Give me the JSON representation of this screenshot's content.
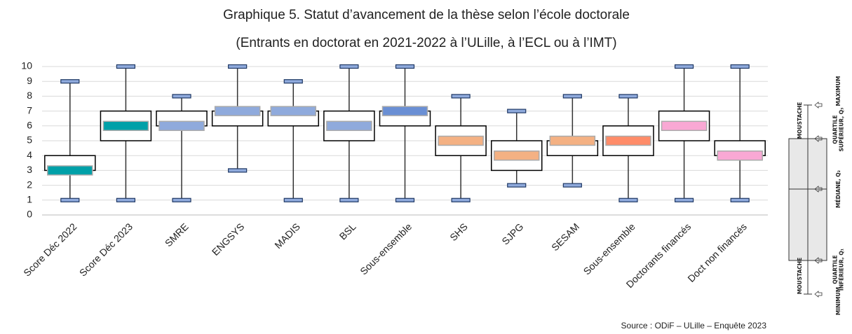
{
  "chart_data": {
    "type": "box",
    "title": "Graphique 5. Statut d’avancement de la thèse selon l’école doctorale",
    "subtitle": "(Entrants en doctorat en 2021-2022 à l’ULille, à l’ECL ou à l’IMT)",
    "categories": [
      "Score Déc 2022",
      "Score Déc 2023",
      "SMRE",
      "ENGSYS",
      "MADIS",
      "BSL",
      "Sous-ensemble",
      "SHS",
      "SJPG",
      "SESAM",
      "Sous-ensemble",
      "Doctorants financés",
      "Doct non financés"
    ],
    "min": [
      1,
      1,
      1,
      3,
      1,
      1,
      1,
      1,
      2,
      2,
      1,
      1,
      1
    ],
    "q1": [
      3,
      5,
      6,
      6,
      6,
      5,
      6,
      4,
      3,
      4,
      4,
      5,
      4
    ],
    "median": [
      3,
      6,
      6,
      7,
      7,
      6,
      7,
      5,
      4,
      5,
      5,
      6,
      4
    ],
    "q3": [
      4,
      7,
      7,
      7,
      7,
      7,
      7,
      6,
      5,
      5,
      6,
      7,
      5
    ],
    "max": [
      9,
      10,
      8,
      10,
      9,
      10,
      10,
      8,
      7,
      8,
      8,
      10,
      10
    ],
    "median_colors": [
      "#00a0a8",
      "#00a0a8",
      "#8faadc",
      "#8faadc",
      "#8faadc",
      "#8faadc",
      "#6a8fd4",
      "#f4b183",
      "#f4b183",
      "#f4b183",
      "#ff8c69",
      "#f9a8d4",
      "#f9a8d4"
    ],
    "ylim": [
      0,
      10
    ],
    "yticks": [
      0,
      1,
      2,
      3,
      4,
      5,
      6,
      7,
      8,
      9,
      10
    ],
    "grid": true,
    "source": "Source : ODiF – ULille – Enquête 2023",
    "legend_diagram": {
      "whisker_top": "MOUSTACHE",
      "whisker_bottom": "MOUSTACHE",
      "maximum": [
        "MAXIMUM"
      ],
      "q3": [
        "QUARTILE",
        "SUPÉRIEUR, Q₃"
      ],
      "median": [
        "MÉDIANE, Q₂"
      ],
      "q1": [
        "QUARTILE",
        "INFÉRIEUR, Q₁"
      ],
      "minimum": [
        "MINIMUM"
      ]
    }
  }
}
